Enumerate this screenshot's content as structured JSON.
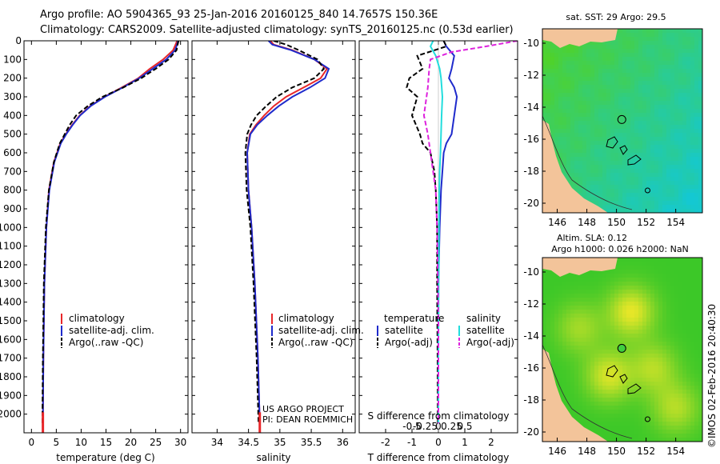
{
  "header": {
    "line1": "Argo profile: AO 5904365_93 25-Jan-2016 20160125_840 14.7657S 150.36E",
    "line2": "Climatology: CARS2009. Satellite-adjusted climatology: synTS_20160125.nc (0.53d earlier)"
  },
  "footer": {
    "stamp": "©IMOS 02-Feb-2016 20:40:30"
  },
  "colors": {
    "clim": "#e8272a",
    "sat": "#1f2bcc",
    "argo": "#000000",
    "cyan": "#22dddd",
    "magenta": "#dd22dd",
    "land": "#f3c49a",
    "sea": "#3fcf3f"
  },
  "chart_data": [
    {
      "id": "temperature",
      "type": "line",
      "xlabel": "temperature (deg C)",
      "ylabel": "",
      "xlim": [
        -1.5,
        31.5
      ],
      "ylim": [
        2100,
        0
      ],
      "xticks": [
        0,
        5,
        10,
        15,
        20,
        25,
        30
      ],
      "yticks": [
        0,
        100,
        200,
        300,
        400,
        500,
        600,
        700,
        800,
        900,
        1000,
        1100,
        1200,
        1300,
        1400,
        1500,
        1600,
        1700,
        1800,
        1900,
        2000
      ],
      "legend": [
        "climatology",
        "satellite-adj. clim.",
        "Argo(..raw -QC)"
      ],
      "series": [
        {
          "name": "climatology",
          "x": [
            29.3,
            29.0,
            28.5,
            26.5,
            23.8,
            21.5,
            18.2,
            14.7,
            11.8,
            9.7,
            8.2,
            6.9,
            5.8,
            4.5,
            3.5,
            3.0,
            2.6,
            2.4,
            2.3
          ],
          "y": [
            0,
            20,
            50,
            100,
            150,
            200,
            250,
            300,
            350,
            400,
            450,
            500,
            550,
            650,
            800,
            1000,
            1300,
            1700,
            2050
          ]
        },
        {
          "name": "satellite-adj. clim.",
          "x": [
            29.5,
            29.3,
            28.9,
            27.1,
            24.4,
            21.7,
            18.4,
            14.8,
            11.9,
            9.8,
            8.3,
            7.0,
            5.9,
            4.6,
            3.6,
            3.0,
            2.6,
            2.4,
            2.3
          ],
          "y": [
            0,
            20,
            50,
            100,
            150,
            200,
            250,
            300,
            350,
            400,
            450,
            500,
            550,
            650,
            800,
            1000,
            1300,
            1700,
            2050
          ]
        },
        {
          "name": "Argo(..raw -QC)",
          "x": [
            29.6,
            29.4,
            29.2,
            27.6,
            25.0,
            22.1,
            18.5,
            14.3,
            11.3,
            9.0,
            7.7,
            6.7,
            5.7,
            4.5,
            3.5,
            2.9,
            2.5,
            2.3,
            2.2
          ],
          "y": [
            0,
            20,
            50,
            100,
            150,
            200,
            250,
            300,
            350,
            400,
            450,
            500,
            550,
            650,
            800,
            1000,
            1300,
            1700,
            2050
          ]
        }
      ]
    },
    {
      "id": "salinity",
      "type": "line",
      "xlabel": "salinity",
      "xlim": [
        33.6,
        36.2
      ],
      "ylim": [
        2100,
        0
      ],
      "xticks": [
        34,
        34.5,
        35,
        35.5,
        36
      ],
      "legend": [
        "climatology",
        "satellite-adj. clim.",
        "Argo(..raw -QC)"
      ],
      "annotation": [
        "US ARGO PROJECT",
        "PI: DEAN ROEMMICH"
      ],
      "series": [
        {
          "name": "climatology",
          "x": [
            34.85,
            34.9,
            35.2,
            35.55,
            35.75,
            35.65,
            35.38,
            35.1,
            34.9,
            34.75,
            34.62,
            34.52,
            34.48,
            34.5,
            34.55,
            34.6,
            34.65,
            34.68
          ],
          "y": [
            0,
            20,
            50,
            100,
            150,
            200,
            250,
            300,
            350,
            400,
            450,
            500,
            600,
            800,
            1000,
            1300,
            1700,
            2050
          ]
        },
        {
          "name": "satellite-adj. clim.",
          "x": [
            34.82,
            34.88,
            35.18,
            35.55,
            35.78,
            35.72,
            35.48,
            35.2,
            34.98,
            34.8,
            34.64,
            34.53,
            34.48,
            34.5,
            34.55,
            34.6,
            34.65,
            34.68
          ],
          "y": [
            0,
            20,
            50,
            100,
            150,
            200,
            250,
            300,
            350,
            400,
            450,
            500,
            600,
            800,
            1000,
            1300,
            1700,
            2050
          ]
        },
        {
          "name": "Argo(..raw -QC)",
          "x": [
            34.9,
            35.1,
            35.3,
            35.6,
            35.7,
            35.55,
            35.2,
            34.95,
            34.78,
            34.63,
            34.54,
            34.48,
            34.45,
            34.47,
            34.53,
            34.58,
            34.63,
            34.66
          ],
          "y": [
            0,
            20,
            50,
            100,
            150,
            200,
            250,
            300,
            350,
            400,
            450,
            500,
            600,
            800,
            1000,
            1300,
            1700,
            2050
          ]
        }
      ]
    },
    {
      "id": "difference",
      "type": "line",
      "xlabel": "T difference from climatology",
      "xlabel2": "S difference from climatology",
      "xlim": [
        -3,
        3
      ],
      "ylim": [
        2100,
        0
      ],
      "xticks": [
        -2,
        -1,
        0,
        1,
        2
      ],
      "xtick_labels": [
        "-2",
        "-1",
        "0",
        "1",
        "2"
      ],
      "sticks": [
        -1,
        -0.5,
        0,
        0.5,
        1
      ],
      "stick_labels": [
        "-0.5",
        "-0.25",
        "0",
        "0.25",
        "0.5"
      ],
      "legend_headers": [
        "temperature",
        "salinity"
      ],
      "legend": [
        "satellite",
        "Argo(-adj)",
        "satellite",
        "Argo(-adj)"
      ],
      "series": [
        {
          "name": "T satellite",
          "x": [
            0.2,
            0.3,
            0.6,
            0.5,
            0.4,
            0.6,
            0.7,
            0.6,
            0.5,
            0.3,
            0.2,
            0.15,
            0.1,
            0.05,
            0.0,
            0.0,
            0.0
          ],
          "y": [
            0,
            30,
            80,
            150,
            200,
            250,
            300,
            400,
            500,
            550,
            600,
            700,
            800,
            1000,
            1300,
            1700,
            2050
          ]
        },
        {
          "name": "T Argo(-adj)",
          "x": [
            0.2,
            0.3,
            -0.8,
            -0.6,
            -1.1,
            -1.2,
            -0.8,
            -1.0,
            -0.7,
            -0.6,
            -0.3,
            -0.15,
            -0.1,
            -0.05,
            -0.05,
            -0.03,
            -0.02
          ],
          "y": [
            0,
            30,
            80,
            150,
            200,
            250,
            300,
            400,
            500,
            550,
            600,
            700,
            800,
            1000,
            1300,
            1700,
            2050
          ]
        },
        {
          "name": "S satellite",
          "x": [
            -0.2,
            -0.3,
            -0.1,
            0.05,
            0.1,
            0.15,
            0.12,
            0.1,
            0.08,
            0.05,
            0.03,
            0.02,
            0.01,
            0.0,
            0.0
          ],
          "y": [
            0,
            30,
            80,
            150,
            200,
            300,
            400,
            500,
            600,
            700,
            800,
            1000,
            1300,
            1700,
            2050
          ]
        },
        {
          "name": "S Argo(-adj)",
          "x": [
            3.0,
            1.8,
            0.5,
            -0.3,
            -0.35,
            -0.4,
            -0.55,
            -0.4,
            -0.3,
            -0.2,
            -0.1,
            -0.05,
            0.0,
            0.0
          ],
          "y": [
            0,
            30,
            60,
            100,
            150,
            250,
            400,
            500,
            600,
            700,
            800,
            1000,
            1500,
            2050
          ]
        }
      ]
    },
    {
      "id": "sst_map",
      "type": "heatmap",
      "title": "sat. SST: 29 Argo: 29.5",
      "xlim": [
        145,
        155.8
      ],
      "ylim": [
        -20.6,
        -9.1
      ],
      "xticks": [
        146,
        148,
        150,
        152,
        154
      ],
      "yticks": [
        -10,
        -12,
        -14,
        -16,
        -18,
        -20
      ],
      "profile_marker": {
        "lon": 150.36,
        "lat": -14.77
      },
      "secondary_marker": {
        "lon": 152.1,
        "lat": -19.2
      }
    },
    {
      "id": "sla_map",
      "type": "heatmap",
      "title": "Altim. SLA: 0.12",
      "title2": "Argo h1000: 0.026 h2000: NaN",
      "xlim": [
        145,
        155.8
      ],
      "ylim": [
        -20.6,
        -9.1
      ],
      "xticks": [
        146,
        148,
        150,
        152,
        154
      ],
      "yticks": [
        -10,
        -12,
        -14,
        -16,
        -18,
        -20
      ],
      "profile_marker": {
        "lon": 150.36,
        "lat": -14.77
      },
      "secondary_marker": {
        "lon": 152.1,
        "lat": -19.2
      }
    }
  ]
}
